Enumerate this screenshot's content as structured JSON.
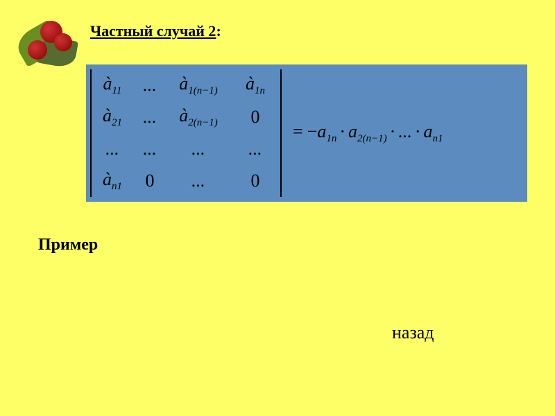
{
  "title": {
    "underlined": "Частный случай 2",
    "suffix": ":"
  },
  "formula": {
    "box_bg": "#5b8bbf",
    "var_symbol": "à",
    "matrix": {
      "rows": 4,
      "cols": 4,
      "cells": [
        [
          "à₁₁",
          "...",
          "à₁(n−1)",
          "à₁ₙ"
        ],
        [
          "à₂₁",
          "...",
          "à₂(n−1)",
          "0"
        ],
        [
          "...",
          "...",
          "...",
          "..."
        ],
        [
          "àₙ₁",
          "0",
          "...",
          "0"
        ]
      ],
      "subscripts": [
        [
          "11",
          null,
          "1(n−1)",
          "1n"
        ],
        [
          "21",
          null,
          "2(n−1)",
          null
        ],
        [
          null,
          null,
          null,
          null
        ],
        [
          "n1",
          null,
          null,
          null
        ]
      ]
    },
    "rhs": {
      "prefix": "= −",
      "terms": [
        "a₁ₙ",
        "a₂(n−1)",
        "...",
        "aₙ₁"
      ],
      "term_subs": [
        "1n",
        "2(n−1)",
        null,
        "n1"
      ],
      "var": "a"
    }
  },
  "example_label": "Пример",
  "back_link": "назад",
  "colors": {
    "background": "#feff66",
    "box": "#5b8bbf",
    "text": "#000000",
    "berry": "#8b0000",
    "leaf": "#6b8e23"
  },
  "fonts": {
    "title_size": 22,
    "formula_size": 26,
    "sub_size": 15,
    "label_size": 24,
    "link_size": 26
  }
}
